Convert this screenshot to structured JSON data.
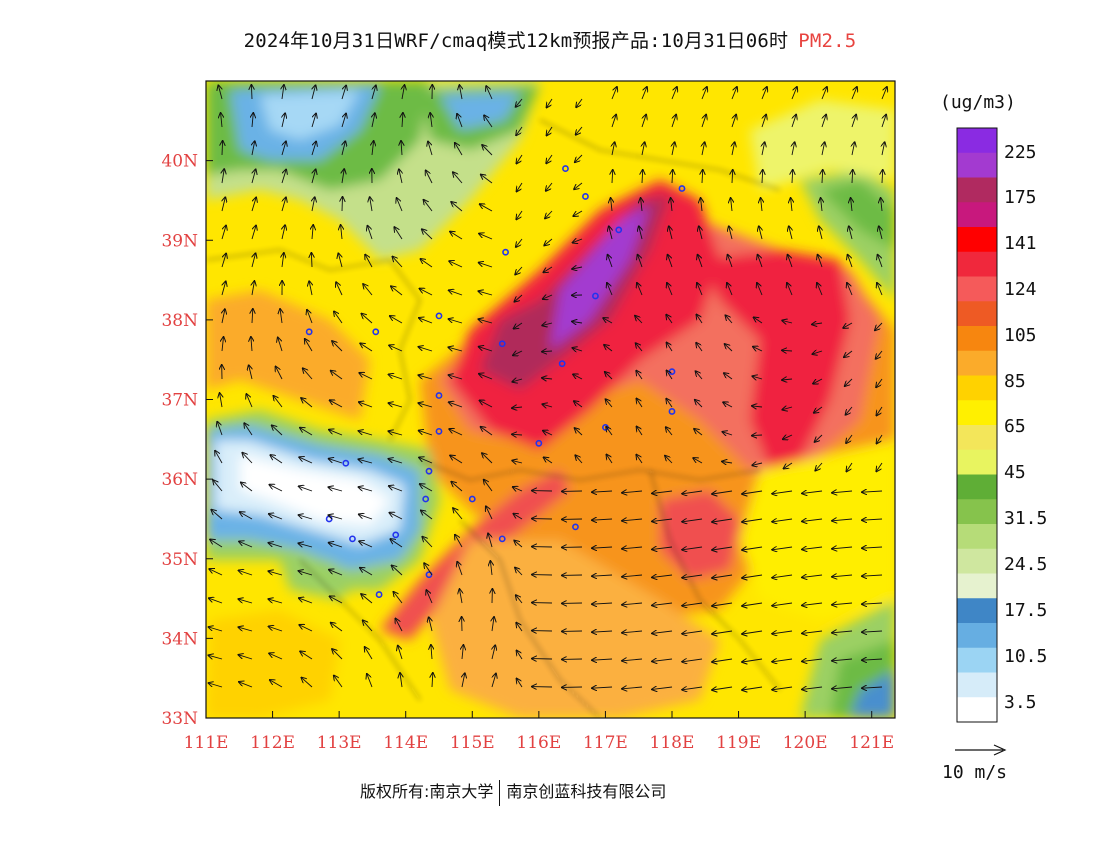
{
  "title": {
    "main": "2024年10月31日WRF/cmaq模式12km预报产品:10月31日06时",
    "pollutant": "PM2.5"
  },
  "map": {
    "lon_range": [
      111,
      121.35
    ],
    "lat_range": [
      33,
      41
    ],
    "lon_ticks": [
      "111E",
      "112E",
      "113E",
      "114E",
      "115E",
      "116E",
      "117E",
      "118E",
      "119E",
      "120E",
      "121E"
    ],
    "lat_ticks": [
      "33N",
      "34N",
      "35N",
      "36N",
      "37N",
      "38N",
      "39N",
      "40N"
    ],
    "wind_scale_label": "10 m/s",
    "colors": {
      "violet": "#9b30d9",
      "purple": "#b03aa8",
      "maroon": "#b02a5a",
      "magenta": "#c8187d",
      "red": "#ff0000",
      "crimson": "#f02040",
      "rose": "#f05050",
      "salmon": "#f36f5f",
      "orange_red": "#f26522",
      "orange": "#f7941d",
      "amber": "#fbb040",
      "gold": "#ffd200",
      "yellow": "#ffee00",
      "light_yellow": "#f5e94b",
      "pale_yellow": "#eef46a",
      "green": "#6dbb45",
      "light_green": "#9bd063",
      "pale_green": "#c4e08a",
      "very_pale_green": "#dbeec0",
      "blue": "#4a8fce",
      "sky": "#6bb2e6",
      "light_sky": "#a6d8f5",
      "pale_sky": "#d9eefa",
      "white": "#ffffff"
    }
  },
  "legend": {
    "unit": "(ug/m3)",
    "labels": [
      "225",
      "175",
      "141",
      "124",
      "105",
      "85",
      "65",
      "45",
      "31.5",
      "24.5",
      "17.5",
      "10.5",
      "3.5"
    ],
    "colors_top_to_bottom": [
      "#8a2be2",
      "#a33ad0",
      "#b02a60",
      "#c8187d",
      "#ff0000",
      "#f0283c",
      "#f55a5a",
      "#ee5a24",
      "#f7860f",
      "#fbab2a",
      "#ffd200",
      "#fff000",
      "#f3e65a",
      "#e8f460",
      "#5fae36",
      "#86c34c",
      "#b6dc78",
      "#cfe79f",
      "#e6f2cf",
      "#3f86c6",
      "#66aee2",
      "#9bd4f3",
      "#d6ecf9",
      "#ffffff"
    ]
  },
  "stations": [
    [
      116.4,
      39.9
    ],
    [
      116.7,
      39.55
    ],
    [
      118.15,
      39.65
    ],
    [
      117.2,
      39.13
    ],
    [
      115.5,
      38.85
    ],
    [
      114.5,
      38.05
    ],
    [
      112.55,
      37.85
    ],
    [
      113.55,
      37.85
    ],
    [
      116.85,
      38.3
    ],
    [
      115.45,
      37.7
    ],
    [
      116.35,
      37.45
    ],
    [
      118.0,
      37.35
    ],
    [
      114.5,
      37.05
    ],
    [
      114.5,
      36.6
    ],
    [
      117.0,
      36.65
    ],
    [
      118.0,
      36.85
    ],
    [
      116.0,
      36.45
    ],
    [
      113.1,
      36.2
    ],
    [
      114.35,
      36.1
    ],
    [
      114.3,
      35.75
    ],
    [
      115.0,
      35.75
    ],
    [
      112.85,
      35.5
    ],
    [
      113.2,
      35.25
    ],
    [
      113.85,
      35.3
    ],
    [
      115.45,
      35.25
    ],
    [
      116.55,
      35.4
    ],
    [
      114.35,
      34.8
    ],
    [
      113.6,
      34.55
    ]
  ],
  "copyright": {
    "left": "版权所有:南京大学",
    "right": "南京创蓝科技有限公司"
  }
}
